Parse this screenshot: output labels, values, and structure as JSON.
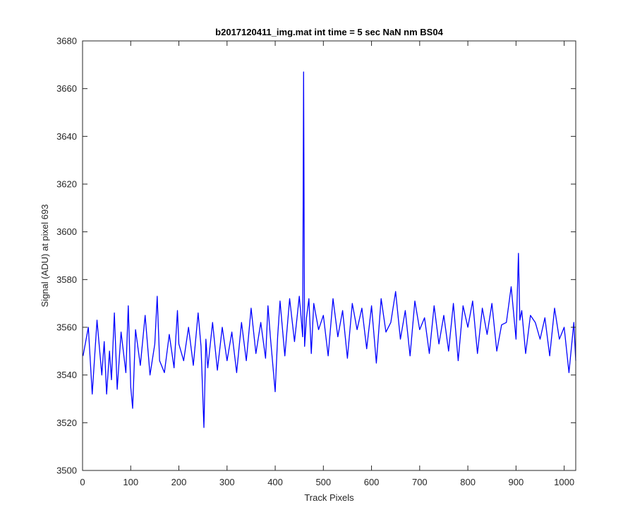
{
  "chart_data": {
    "type": "line",
    "title": "b2017120411_img.mat int time = 5 sec  NaN nm BS04",
    "xlabel": "Track Pixels",
    "ylabel": "Signal (ADU) at pixel 693",
    "xlim": [
      0,
      1024
    ],
    "ylim": [
      3500,
      3680
    ],
    "xticks": [
      0,
      100,
      200,
      300,
      400,
      500,
      600,
      700,
      800,
      900,
      1000
    ],
    "yticks": [
      3500,
      3520,
      3540,
      3560,
      3580,
      3600,
      3620,
      3640,
      3660,
      3680
    ],
    "grid": false,
    "legend": "none",
    "series": [
      {
        "color": "#0000ff",
        "x": [
          1,
          12,
          20,
          30,
          40,
          45,
          50,
          56,
          60,
          66,
          72,
          80,
          90,
          95,
          100,
          104,
          110,
          120,
          130,
          140,
          150,
          155,
          160,
          170,
          180,
          190,
          197,
          200,
          210,
          220,
          230,
          240,
          246,
          252,
          256,
          260,
          270,
          280,
          290,
          300,
          310,
          320,
          330,
          340,
          350,
          360,
          370,
          380,
          385,
          390,
          400,
          405,
          410,
          420,
          430,
          440,
          450,
          457,
          459,
          461,
          465,
          470,
          475,
          480,
          490,
          500,
          510,
          520,
          530,
          540,
          550,
          560,
          570,
          580,
          590,
          600,
          610,
          620,
          630,
          640,
          650,
          660,
          670,
          680,
          690,
          700,
          710,
          720,
          730,
          740,
          750,
          760,
          770,
          780,
          790,
          800,
          810,
          820,
          830,
          840,
          850,
          860,
          870,
          880,
          890,
          900,
          905,
          908,
          912,
          920,
          930,
          940,
          950,
          960,
          970,
          980,
          990,
          1000,
          1010,
          1020,
          1024
        ],
        "y": [
          3548,
          3560,
          3532,
          3563,
          3540,
          3554,
          3532,
          3550,
          3538,
          3566,
          3534,
          3558,
          3541,
          3569,
          3535,
          3526,
          3559,
          3544,
          3565,
          3540,
          3553,
          3573,
          3546,
          3541,
          3557,
          3543,
          3567,
          3553,
          3546,
          3560,
          3544,
          3566,
          3552,
          3518,
          3555,
          3543,
          3562,
          3542,
          3560,
          3546,
          3558,
          3541,
          3562,
          3546,
          3568,
          3549,
          3562,
          3547,
          3569,
          3556,
          3533,
          3556,
          3571,
          3548,
          3572,
          3554,
          3573,
          3556,
          3667,
          3552,
          3564,
          3572,
          3549,
          3570,
          3559,
          3565,
          3548,
          3572,
          3556,
          3567,
          3547,
          3570,
          3559,
          3568,
          3551,
          3569,
          3545,
          3572,
          3558,
          3562,
          3575,
          3555,
          3567,
          3548,
          3571,
          3559,
          3564,
          3549,
          3569,
          3553,
          3565,
          3550,
          3570,
          3546,
          3569,
          3560,
          3571,
          3549,
          3568,
          3557,
          3570,
          3550,
          3561,
          3562,
          3577,
          3555,
          3591,
          3563,
          3567,
          3549,
          3565,
          3562,
          3555,
          3564,
          3548,
          3568,
          3555,
          3560,
          3541,
          3562,
          3546
        ]
      }
    ]
  }
}
